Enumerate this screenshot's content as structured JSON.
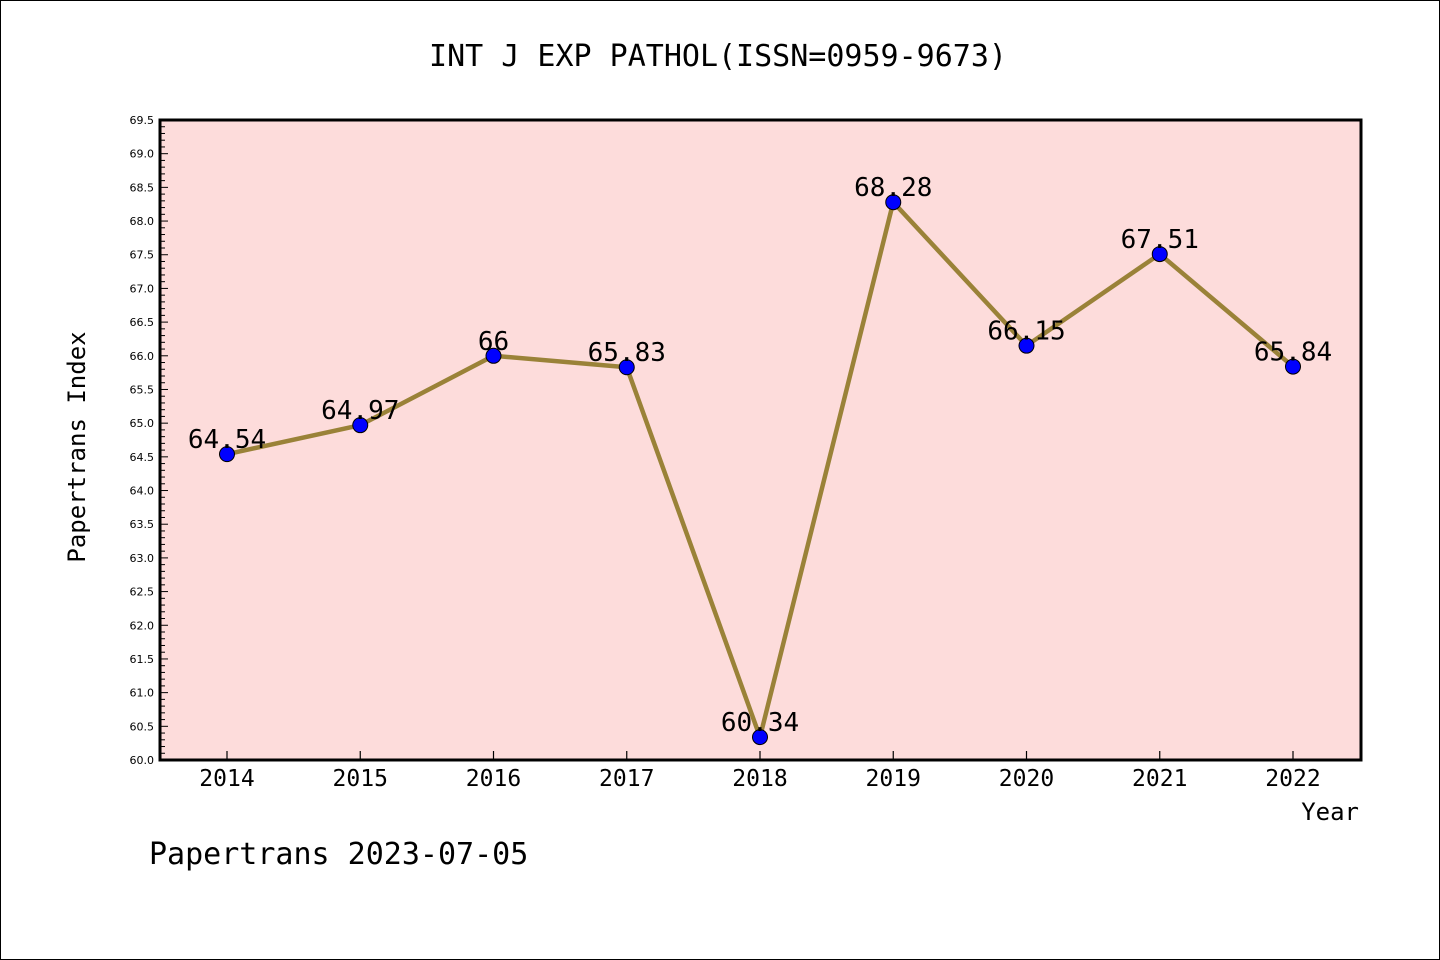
{
  "chart_data": {
    "type": "line",
    "title": "INT J EXP PATHOL(ISSN=0959-9673)",
    "xlabel": "Year",
    "ylabel": "Papertrans Index",
    "categories": [
      "2014",
      "2015",
      "2016",
      "2017",
      "2018",
      "2019",
      "2020",
      "2021",
      "2022"
    ],
    "series": [
      {
        "values": [
          64.54,
          64.97,
          66,
          65.83,
          60.34,
          68.28,
          66.15,
          67.51,
          65.84
        ],
        "labels": [
          "64.54",
          "64.97",
          "66",
          "65.83",
          "60.34",
          "68.28",
          "66.15",
          "67.51",
          "65.84"
        ]
      }
    ],
    "ylim": [
      60.0,
      69.5
    ],
    "yticks": [
      "60.0",
      "60.5",
      "61.0",
      "61.5",
      "62.0",
      "62.5",
      "63.0",
      "63.5",
      "64.0",
      "64.5",
      "65.0",
      "65.5",
      "66.0",
      "66.5",
      "67.0",
      "67.5",
      "68.0",
      "68.5",
      "69.0",
      "69.5"
    ],
    "grid": false,
    "colors": {
      "plot_background": "#fddcdb",
      "line": "#9a8238",
      "marker": "#0000ff"
    }
  },
  "footer": "Papertrans 2023-07-05"
}
